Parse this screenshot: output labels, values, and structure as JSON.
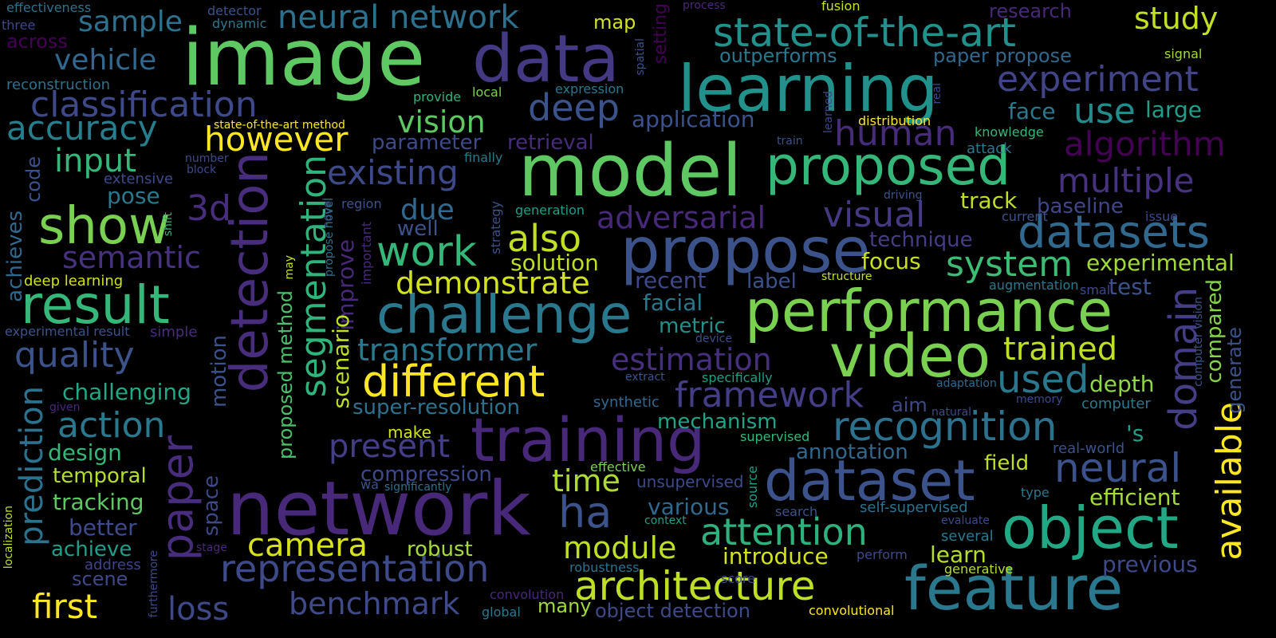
{
  "words": [
    {
      "text": "image",
      "color": "#5ec962"
    },
    {
      "text": "model",
      "color": "#5ec962"
    },
    {
      "text": "network",
      "color": "#482878"
    },
    {
      "text": "data",
      "color": "#443983"
    },
    {
      "text": "learning",
      "color": "#21918c"
    },
    {
      "text": "performance",
      "color": "#7ad151"
    },
    {
      "text": "propose",
      "color": "#3b528b"
    },
    {
      "text": "proposed",
      "color": "#35b779"
    },
    {
      "text": "training",
      "color": "#482878"
    },
    {
      "text": "video",
      "color": "#7ad151"
    },
    {
      "text": "detection",
      "color": "#472d7b"
    },
    {
      "text": "dataset",
      "color": "#3b528b"
    },
    {
      "text": "feature",
      "color": "#2a788e"
    },
    {
      "text": "object",
      "color": "#22a884"
    },
    {
      "text": "result",
      "color": "#35b779"
    },
    {
      "text": "challenge",
      "color": "#2a788e"
    },
    {
      "text": "state-of-the-art",
      "color": "#21918c"
    },
    {
      "text": "paper",
      "color": "#472d7b"
    },
    {
      "text": "datasets",
      "color": "#31688e"
    },
    {
      "text": "show",
      "color": "#7ad151"
    },
    {
      "text": "different",
      "color": "#fde725"
    },
    {
      "text": "architecture",
      "color": "#bddf26"
    },
    {
      "text": "representation",
      "color": "#3e4a89"
    },
    {
      "text": "recognition",
      "color": "#2c728e"
    },
    {
      "text": "neural network",
      "color": "#2c728e"
    },
    {
      "text": "classification",
      "color": "#3e4989"
    },
    {
      "text": "attention",
      "color": "#2db27d"
    },
    {
      "text": "segmentation",
      "color": "#2fb47c"
    },
    {
      "text": "work",
      "color": "#35b779"
    },
    {
      "text": "system",
      "color": "#3dbc74"
    },
    {
      "text": "experiment",
      "color": "#414487"
    },
    {
      "text": "visual",
      "color": "#443983"
    },
    {
      "text": "adversarial",
      "color": "#482878"
    },
    {
      "text": "algorithm",
      "color": "#440154"
    },
    {
      "text": "multiple",
      "color": "#46327e"
    },
    {
      "text": "neural",
      "color": "#3b528b"
    },
    {
      "text": "domain",
      "color": "#433e85"
    },
    {
      "text": "framework",
      "color": "#433e85"
    },
    {
      "text": "however",
      "color": "#fde725"
    },
    {
      "text": "existing",
      "color": "#3e4989"
    },
    {
      "text": "deep",
      "color": "#3b528b"
    },
    {
      "text": "human",
      "color": "#472c7a"
    },
    {
      "text": "accuracy",
      "color": "#277f8e"
    },
    {
      "text": "quality",
      "color": "#3b528b"
    },
    {
      "text": "action",
      "color": "#2a788e"
    },
    {
      "text": "demonstrate",
      "color": "#d2e21b"
    },
    {
      "text": "transformer",
      "color": "#2a788e"
    },
    {
      "text": "estimation",
      "color": "#46307e"
    },
    {
      "text": "trained",
      "color": "#bddf26"
    },
    {
      "text": "used",
      "color": "#2a788e"
    },
    {
      "text": "available",
      "color": "#fde725"
    },
    {
      "text": "also",
      "color": "#c2df23"
    },
    {
      "text": "input",
      "color": "#35b779"
    },
    {
      "text": "vision",
      "color": "#5ec962"
    },
    {
      "text": "use",
      "color": "#228c8d"
    },
    {
      "text": "camera",
      "color": "#d8e219"
    },
    {
      "text": "module",
      "color": "#bddf26"
    },
    {
      "text": "benchmark",
      "color": "#3e4a89"
    },
    {
      "text": "loss",
      "color": "#3e4989"
    },
    {
      "text": "first",
      "color": "#fde725"
    },
    {
      "text": "prediction",
      "color": "#2c728e"
    },
    {
      "text": "present",
      "color": "#433e85"
    },
    {
      "text": "time",
      "color": "#addc30"
    },
    {
      "text": "ha",
      "color": "#3b528b"
    },
    {
      "text": "sample",
      "color": "#2c728e"
    },
    {
      "text": "vehicle",
      "color": "#31688e"
    },
    {
      "text": "semantic",
      "color": "#46327e"
    },
    {
      "text": "3d",
      "color": "#472d7b"
    },
    {
      "text": "study",
      "color": "#c2df23"
    },
    {
      "text": "due",
      "color": "#31688e"
    },
    {
      "text": "application",
      "color": "#3b528b"
    },
    {
      "text": "face",
      "color": "#2a788e"
    },
    {
      "text": "large",
      "color": "#1f9e89"
    },
    {
      "text": "track",
      "color": "#bddf26"
    },
    {
      "text": "baseline",
      "color": "#404688"
    },
    {
      "text": "technique",
      "color": "#433e85"
    },
    {
      "text": "experimental",
      "color": "#a0da39"
    },
    {
      "text": "test",
      "color": "#3b528b"
    },
    {
      "text": "focus",
      "color": "#c8e020"
    },
    {
      "text": "solution",
      "color": "#bddf26"
    },
    {
      "text": "recent",
      "color": "#3e4989"
    },
    {
      "text": "label",
      "color": "#3b528b"
    },
    {
      "text": "facial",
      "color": "#2a788e"
    },
    {
      "text": "metric",
      "color": "#21918c"
    },
    {
      "text": "depth",
      "color": "#8fd744"
    },
    {
      "text": "compared",
      "color": "#84d44b"
    },
    {
      "text": "generate",
      "color": "#3b528b"
    },
    {
      "text": "challenging",
      "color": "#22a884"
    },
    {
      "text": "design",
      "color": "#35b779"
    },
    {
      "text": "temporal",
      "color": "#b5de2b"
    },
    {
      "text": "tracking",
      "color": "#5ec962"
    },
    {
      "text": "better",
      "color": "#3e4a89"
    },
    {
      "text": "achieve",
      "color": "#1f9e89"
    },
    {
      "text": "address",
      "color": "#414487"
    },
    {
      "text": "scene",
      "color": "#3e4989"
    },
    {
      "text": "retrieval",
      "color": "#472c7a"
    },
    {
      "text": "parameter",
      "color": "#3e4a89"
    },
    {
      "text": "super-resolution",
      "color": "#2c728e"
    },
    {
      "text": "mechanism",
      "color": "#20a386"
    },
    {
      "text": "annotation",
      "color": "#31688e"
    },
    {
      "text": "compression",
      "color": "#3e4989"
    },
    {
      "text": "various",
      "color": "#31688e"
    },
    {
      "text": "unsupervised",
      "color": "#3e4a89"
    },
    {
      "text": "robust",
      "color": "#a5db36"
    },
    {
      "text": "introduce",
      "color": "#d2e21b"
    },
    {
      "text": "learn",
      "color": "#b5de2b"
    },
    {
      "text": "previous",
      "color": "#3e4989"
    },
    {
      "text": "efficient",
      "color": "#a5db36"
    },
    {
      "text": "field",
      "color": "#bddf26"
    },
    {
      "text": "improve",
      "color": "#482878"
    },
    {
      "text": "scenario",
      "color": "#bddf26"
    },
    {
      "text": "proposed method",
      "color": "#4ac16d"
    },
    {
      "text": "motion",
      "color": "#3b528b"
    },
    {
      "text": "space",
      "color": "#3e4989"
    },
    {
      "text": "achieves",
      "color": "#31688e"
    },
    {
      "text": "pose",
      "color": "#2a788e"
    },
    {
      "text": "code",
      "color": "#3b528b"
    },
    {
      "text": "outperforms",
      "color": "#2a788e"
    },
    {
      "text": "paper propose",
      "color": "#31688e"
    },
    {
      "text": "well",
      "color": "#3b528b"
    },
    {
      "text": "make",
      "color": "#d2e21b"
    },
    {
      "text": "many",
      "color": "#a0da39"
    },
    {
      "text": "object detection",
      "color": "#3e4a89"
    },
    {
      "text": "'s",
      "color": "#1f9e89"
    },
    {
      "text": "setting",
      "color": "#440154"
    },
    {
      "text": "map",
      "color": "#d2e21b"
    },
    {
      "text": "research",
      "color": "#482878"
    },
    {
      "text": "across",
      "color": "#440154"
    },
    {
      "text": "reconstruction",
      "color": "#2c728e"
    },
    {
      "text": "effectiveness",
      "color": "#2c728e"
    },
    {
      "text": "deep learning",
      "color": "#d2e21b"
    },
    {
      "text": "state-of-the-art method",
      "color": "#fde725"
    },
    {
      "text": "experimental result",
      "color": "#3b528b"
    },
    {
      "text": "simple",
      "color": "#472c7a"
    },
    {
      "text": "distribution",
      "color": "#fde725"
    },
    {
      "text": "knowledge",
      "color": "#35b779"
    },
    {
      "text": "attack",
      "color": "#2a788e"
    },
    {
      "text": "expression",
      "color": "#2a788e"
    },
    {
      "text": "provide",
      "color": "#2fb47c"
    },
    {
      "text": "local",
      "color": "#7ad151"
    },
    {
      "text": "signal",
      "color": "#a0da39"
    },
    {
      "text": "augmentation",
      "color": "#2a788e"
    },
    {
      "text": "structure",
      "color": "#c8e020"
    },
    {
      "text": "small",
      "color": "#3e4a89"
    },
    {
      "text": "adaptation",
      "color": "#31688e"
    },
    {
      "text": "memory",
      "color": "#3e4a89"
    },
    {
      "text": "computer",
      "color": "#2a788e"
    },
    {
      "text": "natural",
      "color": "#3e4a89"
    },
    {
      "text": "aim",
      "color": "#3e4989"
    },
    {
      "text": "synthetic",
      "color": "#31688e"
    },
    {
      "text": "extract",
      "color": "#3b528b"
    },
    {
      "text": "specifically",
      "color": "#1f9e89"
    },
    {
      "text": "device",
      "color": "#3e4a89"
    },
    {
      "text": "supervised",
      "color": "#35b779"
    },
    {
      "text": "effective",
      "color": "#7ad151"
    },
    {
      "text": "source",
      "color": "#1f9e89"
    },
    {
      "text": "significantly",
      "color": "#2c728e"
    },
    {
      "text": "wa",
      "color": "#3b528b"
    },
    {
      "text": "context",
      "color": "#1f9e89"
    },
    {
      "text": "search",
      "color": "#3b528b"
    },
    {
      "text": "self-supervised",
      "color": "#2c728e"
    },
    {
      "text": "evaluate",
      "color": "#3e4989"
    },
    {
      "text": "several",
      "color": "#2a788e"
    },
    {
      "text": "perform",
      "color": "#3e4989"
    },
    {
      "text": "generative",
      "color": "#b5de2b"
    },
    {
      "text": "type",
      "color": "#2a788e"
    },
    {
      "text": "score",
      "color": "#3e4a89"
    },
    {
      "text": "robustness",
      "color": "#2c728e"
    },
    {
      "text": "convolution",
      "color": "#482878"
    },
    {
      "text": "global",
      "color": "#2a788e"
    },
    {
      "text": "convolutional",
      "color": "#fde725"
    },
    {
      "text": "real-world",
      "color": "#3b528b"
    },
    {
      "text": "current",
      "color": "#3b528b"
    },
    {
      "text": "issue",
      "color": "#3e4989"
    },
    {
      "text": "driving",
      "color": "#3b528b"
    },
    {
      "text": "generation",
      "color": "#1f9e89"
    },
    {
      "text": "region",
      "color": "#3b528b"
    },
    {
      "text": "finally",
      "color": "#2a788e"
    },
    {
      "text": "train",
      "color": "#3b528b"
    },
    {
      "text": "strategy",
      "color": "#3b528b"
    },
    {
      "text": "novel",
      "color": "#3e4989"
    },
    {
      "text": "propose novel",
      "color": "#2c728e"
    },
    {
      "text": "important",
      "color": "#482878"
    },
    {
      "text": "may",
      "color": "#c8e020"
    },
    {
      "text": "number",
      "color": "#3e4989"
    },
    {
      "text": "block",
      "color": "#3e4989"
    },
    {
      "text": "extensive",
      "color": "#3e4989"
    },
    {
      "text": "shift",
      "color": "#35b779"
    },
    {
      "text": "given",
      "color": "#482878"
    },
    {
      "text": "stage",
      "color": "#482878"
    },
    {
      "text": "furthermore",
      "color": "#3e4989"
    },
    {
      "text": "localization",
      "color": "#c2df23"
    },
    {
      "text": "three",
      "color": "#3e4989"
    },
    {
      "text": "dynamic",
      "color": "#2a788e"
    },
    {
      "text": "detector",
      "color": "#3b528b"
    },
    {
      "text": "process",
      "color": "#482878"
    },
    {
      "text": "fusion",
      "color": "#c8e020"
    },
    {
      "text": "spatial",
      "color": "#3b528b"
    },
    {
      "text": "learned",
      "color": "#3e4989"
    },
    {
      "text": "real",
      "color": "#3e4989"
    },
    {
      "text": "computer vision",
      "color": "#3b528b"
    }
  ]
}
